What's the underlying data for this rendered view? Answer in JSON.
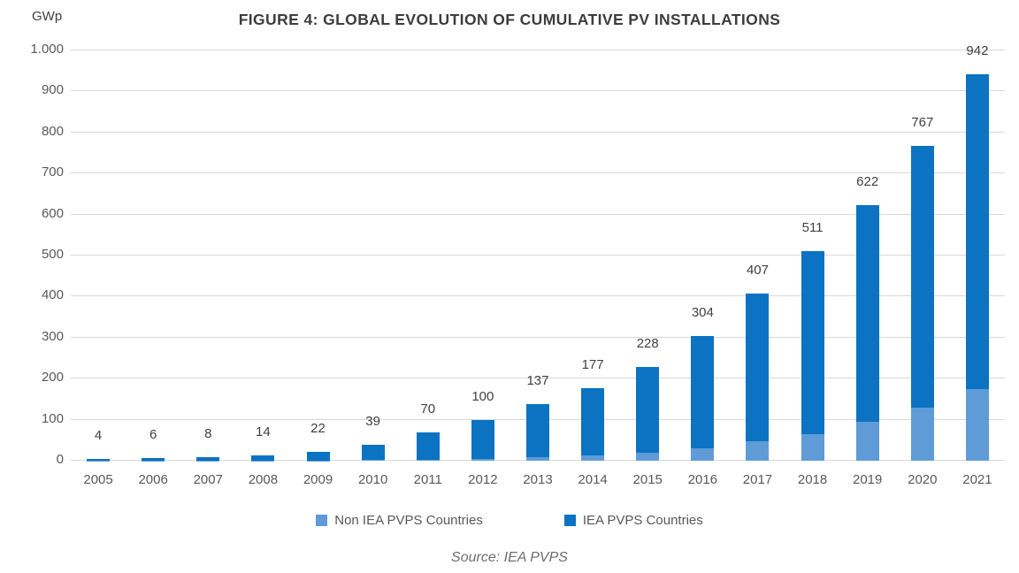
{
  "figure": {
    "title": "FIGURE 4: GLOBAL EVOLUTION OF CUMULATIVE PV INSTALLATIONS",
    "y_unit": "GWp",
    "source": "Source: IEA PVPS"
  },
  "legend": {
    "non_iea_label": "Non IEA PVPS Countries",
    "iea_label": "IEA PVPS Countries"
  },
  "colors": {
    "non_iea": "#5f9bd7",
    "iea": "#0b73c2",
    "gridline": "#d9d9d9",
    "label_text": "#404040",
    "axis_text": "#595959"
  },
  "chart_data": {
    "type": "bar",
    "stacked": true,
    "title": "FIGURE 4: GLOBAL EVOLUTION OF CUMULATIVE PV INSTALLATIONS",
    "xlabel": "",
    "ylabel": "GWp",
    "ylim": [
      0,
      1000
    ],
    "ytick_step": 100,
    "ytick_labels": [
      "0",
      "100",
      "200",
      "300",
      "400",
      "500",
      "600",
      "700",
      "800",
      "900",
      "1.000"
    ],
    "grid": true,
    "legend_position": "bottom",
    "categories": [
      "2005",
      "2006",
      "2007",
      "2008",
      "2009",
      "2010",
      "2011",
      "2012",
      "2013",
      "2014",
      "2015",
      "2016",
      "2017",
      "2018",
      "2019",
      "2020",
      "2021"
    ],
    "series": [
      {
        "name": "Non IEA PVPS Countries",
        "color_key": "non_iea",
        "values": [
          1,
          1,
          1,
          1,
          1,
          2,
          3,
          4,
          8,
          12,
          20,
          30,
          47,
          65,
          95,
          130,
          175
        ]
      },
      {
        "name": "IEA PVPS Countries",
        "color_key": "iea",
        "values": [
          3,
          5,
          7,
          13,
          21,
          37,
          67,
          96,
          129,
          165,
          208,
          274,
          360,
          446,
          527,
          637,
          767
        ]
      }
    ],
    "totals": [
      4,
      6,
      8,
      14,
      22,
      39,
      70,
      100,
      137,
      177,
      228,
      304,
      407,
      511,
      622,
      767,
      942
    ],
    "data_labels": [
      "4",
      "6",
      "8",
      "14",
      "22",
      "39",
      "70",
      "100",
      "137",
      "177",
      "228",
      "304",
      "407",
      "511",
      "622",
      "767",
      "942"
    ]
  }
}
